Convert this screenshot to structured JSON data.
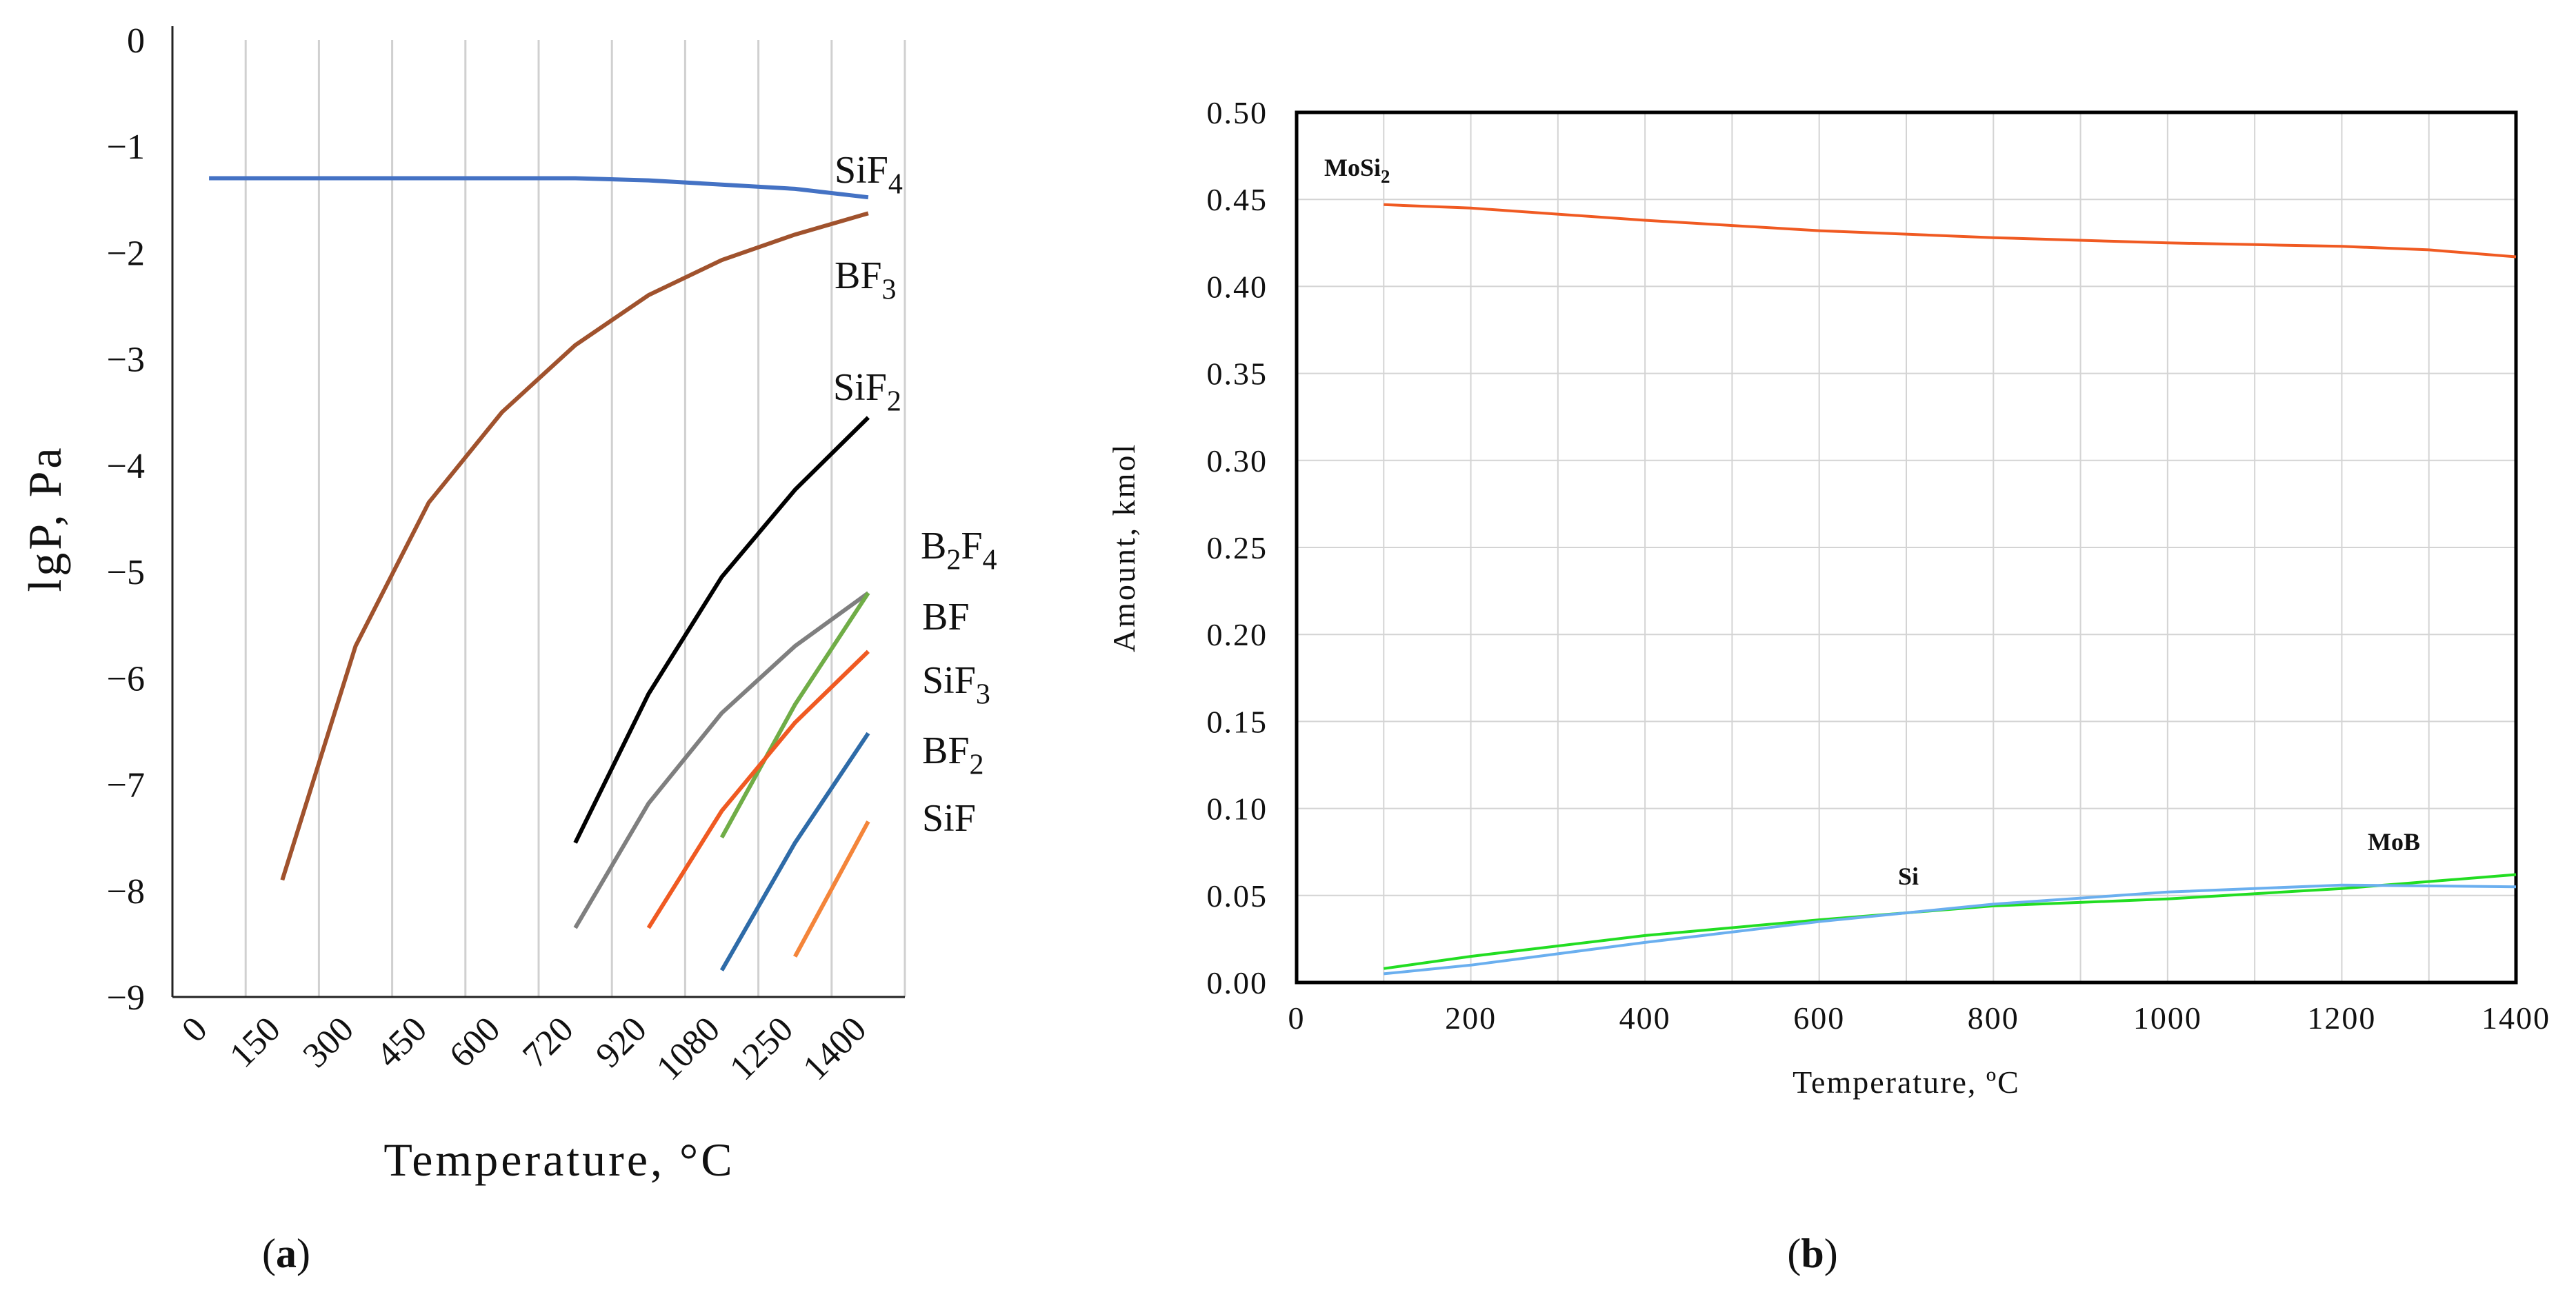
{
  "panel_labels": [
    "(a)",
    "(b)"
  ],
  "chart_data": [
    {
      "type": "line",
      "panel": "a",
      "xlabel": "Temperature, °C",
      "ylabel": "lgP, Pa",
      "categories": [
        "0",
        "150",
        "300",
        "450",
        "600",
        "720",
        "920",
        "1080",
        "1250",
        "1400"
      ],
      "ylim": [
        -9,
        0
      ],
      "yticks": [
        "0",
        "−1",
        "−2",
        "−3",
        "−4",
        "−5",
        "−6",
        "−7",
        "−8",
        "−9"
      ],
      "grid": "vertical",
      "series": [
        {
          "name": "SiF4",
          "label_main": "SiF",
          "label_sub": "4",
          "color": "#4472C4",
          "values": [
            -1.3,
            -1.3,
            -1.3,
            -1.3,
            -1.3,
            -1.3,
            -1.32,
            -1.36,
            -1.4,
            -1.48
          ]
        },
        {
          "name": "BF3",
          "label_main": "BF",
          "label_sub": "3",
          "color": "#A0522D",
          "values": [
            null,
            -7.9,
            -5.7,
            -4.35,
            -3.5,
            -2.87,
            -2.4,
            -2.07,
            -1.83,
            -1.63
          ]
        },
        {
          "name": "SiF2",
          "label_main": "SiF",
          "label_sub": "2",
          "color": "#000000",
          "values": [
            null,
            null,
            null,
            null,
            null,
            -7.55,
            -6.15,
            -5.05,
            -4.23,
            -3.55
          ]
        },
        {
          "name": "B2F4",
          "label_main": "B",
          "label_sub": "2",
          "label_tail": "F",
          "label_sub2": "4",
          "color": "#7F7F7F",
          "values": [
            null,
            null,
            null,
            null,
            null,
            -8.35,
            -7.18,
            -6.33,
            -5.7,
            -5.2
          ]
        },
        {
          "name": "BF",
          "label_main": "BF",
          "label_sub": "",
          "color": "#70AD47",
          "values": [
            null,
            null,
            null,
            null,
            null,
            null,
            null,
            -7.5,
            -6.25,
            -5.2
          ]
        },
        {
          "name": "SiF3",
          "label_main": "SiF",
          "label_sub": "3",
          "color": "#F05A22",
          "values": [
            null,
            null,
            null,
            null,
            null,
            null,
            -8.35,
            -7.25,
            -6.42,
            -5.75
          ]
        },
        {
          "name": "BF2",
          "label_main": "BF",
          "label_sub": "2",
          "color": "#2E6BA8",
          "values": [
            null,
            null,
            null,
            null,
            null,
            null,
            null,
            -8.75,
            -7.55,
            -6.52
          ]
        },
        {
          "name": "SiF",
          "label_main": "SiF",
          "label_sub": "",
          "color": "#F4853A",
          "values": [
            null,
            null,
            null,
            null,
            null,
            null,
            null,
            null,
            -8.62,
            -7.35
          ]
        }
      ]
    },
    {
      "type": "line",
      "panel": "b",
      "xlabel": "Temperature, ºC",
      "ylabel": "Amount, kmol",
      "xlim": [
        0,
        1400
      ],
      "ylim": [
        0,
        0.5
      ],
      "xticks": [
        0,
        200,
        400,
        600,
        800,
        1000,
        1200,
        1400
      ],
      "yticks": [
        "0.00",
        "0.05",
        "0.10",
        "0.15",
        "0.20",
        "0.25",
        "0.30",
        "0.35",
        "0.40",
        "0.45",
        "0.50"
      ],
      "grid": "both",
      "series": [
        {
          "name": "MoSi2",
          "label_main": "MoSi",
          "label_sub": "2",
          "color": "#F05A22",
          "x": [
            100,
            200,
            400,
            600,
            800,
            1000,
            1100,
            1200,
            1300,
            1400
          ],
          "y": [
            0.447,
            0.445,
            0.438,
            0.432,
            0.428,
            0.425,
            0.424,
            0.423,
            0.421,
            0.417
          ]
        },
        {
          "name": "Si",
          "label_main": "Si",
          "label_sub": "",
          "color": "#22DD22",
          "x": [
            100,
            200,
            400,
            600,
            700,
            800,
            1000,
            1200,
            1400
          ],
          "y": [
            0.008,
            0.015,
            0.027,
            0.036,
            0.04,
            0.044,
            0.048,
            0.054,
            0.062
          ]
        },
        {
          "name": "MoB",
          "label_main": "MoB",
          "label_sub": "",
          "color": "#6AAFEF",
          "x": [
            100,
            200,
            400,
            600,
            700,
            800,
            1000,
            1200,
            1400
          ],
          "y": [
            0.005,
            0.01,
            0.023,
            0.035,
            0.04,
            0.045,
            0.052,
            0.056,
            0.055
          ]
        }
      ]
    }
  ]
}
